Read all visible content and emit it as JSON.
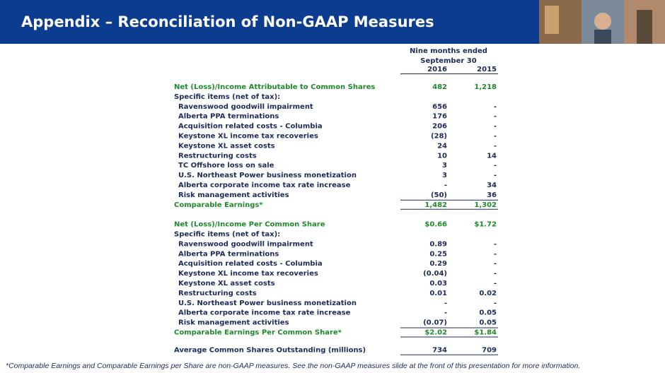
{
  "header": {
    "title": "Appendix – Reconciliation of Non-GAAP Measures"
  },
  "table": {
    "caption": [
      "Nine months ended",
      "September 30"
    ],
    "columns": [
      "2016",
      "2015"
    ],
    "blocks": [
      {
        "lead": {
          "label": "Net (Loss)/Income Attributable to Common Shares",
          "values": [
            "482",
            "1,218"
          ]
        },
        "subheading": "Specific items (net of tax):",
        "items": [
          {
            "label": "Ravenswood goodwill impairment",
            "values": [
              "656",
              "-"
            ]
          },
          {
            "label": "Alberta PPA terminations",
            "values": [
              "176",
              "-"
            ]
          },
          {
            "label": "Acquisition related costs - Columbia",
            "values": [
              "206",
              "-"
            ]
          },
          {
            "label": "Keystone XL income tax recoveries",
            "values": [
              "(28)",
              "-"
            ]
          },
          {
            "label": "Keystone XL asset costs",
            "values": [
              "24",
              "-"
            ]
          },
          {
            "label": "Restructuring costs",
            "values": [
              "10",
              "14"
            ]
          },
          {
            "label": "TC Offshore loss on sale",
            "values": [
              "3",
              "-"
            ]
          },
          {
            "label": "U.S. Northeast Power business monetization",
            "values": [
              "3",
              "-"
            ]
          },
          {
            "label": "Alberta corporate income tax rate increase",
            "values": [
              "-",
              "34"
            ]
          },
          {
            "label": "Risk management activities",
            "values": [
              "(50)",
              "36"
            ]
          }
        ],
        "total": {
          "label": "Comparable Earnings*",
          "values": [
            "1,482",
            "1,302"
          ]
        }
      },
      {
        "lead": {
          "label": "Net (Loss)/Income Per Common Share",
          "values": [
            "$0.66",
            "$1.72"
          ]
        },
        "subheading": "Specific items (net of tax):",
        "items": [
          {
            "label": "Ravenswood goodwill impairment",
            "values": [
              "0.89",
              "-"
            ]
          },
          {
            "label": "Alberta PPA terminations",
            "values": [
              "0.25",
              "-"
            ]
          },
          {
            "label": "Acquisition related costs - Columbia",
            "values": [
              "0.29",
              "-"
            ]
          },
          {
            "label": "Keystone XL income tax recoveries",
            "values": [
              "(0.04)",
              "-"
            ]
          },
          {
            "label": "Keystone XL asset costs",
            "values": [
              "0.03",
              "-"
            ]
          },
          {
            "label": "Restructuring costs",
            "values": [
              "0.01",
              "0.02"
            ]
          },
          {
            "label": "U.S. Northeast Power business monetization",
            "values": [
              "-",
              "-"
            ]
          },
          {
            "label": "Alberta corporate income tax rate increase",
            "values": [
              "-",
              "0.05"
            ]
          },
          {
            "label": "Risk management activities",
            "values": [
              "(0.07)",
              "0.05"
            ]
          }
        ],
        "total": {
          "label": "Comparable Earnings Per Common Share*",
          "values": [
            "$2.02",
            "$1.84"
          ]
        }
      }
    ],
    "footer_row": {
      "label": "Average Common Shares Outstanding (millions)",
      "values": [
        "734",
        "709"
      ]
    }
  },
  "footnote": "*Comparable Earnings and Comparable Earnings per Share are non-GAAP measures.  See the non-GAAP measures slide at the front of this presentation for more information."
}
